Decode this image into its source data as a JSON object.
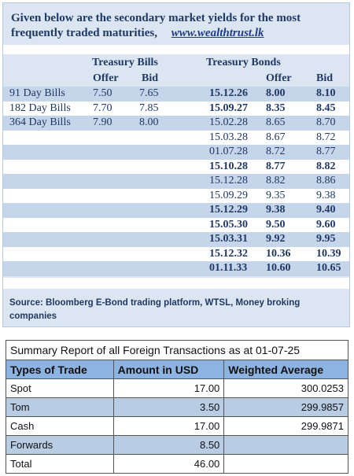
{
  "intro": {
    "text": "Given below are the secondary market yields for the most frequently traded maturities,",
    "link": "www.wealthtrust.lk"
  },
  "headers": {
    "bills": "Treasury Bills",
    "bonds": "Treasury Bonds",
    "offer": "Offer",
    "bid": "Bid"
  },
  "rows": [
    {
      "label": "91 Day Bills",
      "bill_offer": "7.50",
      "bill_bid": "7.65",
      "date": "15.12.26",
      "bond_offer": "8.00",
      "bond_bid": "8.10",
      "bold": true
    },
    {
      "label": "182 Day Bills",
      "bill_offer": "7.70",
      "bill_bid": "7.85",
      "date": "15.09.27",
      "bond_offer": "8.35",
      "bond_bid": "8.45",
      "bold": true
    },
    {
      "label": "364 Day Bills",
      "bill_offer": "7.90",
      "bill_bid": "8.00",
      "date": "15.02.28",
      "bond_offer": "8.65",
      "bond_bid": "8.70",
      "bold": false
    },
    {
      "label": "",
      "bill_offer": "",
      "bill_bid": "",
      "date": "15.03.28",
      "bond_offer": "8.67",
      "bond_bid": "8.72",
      "bold": false
    },
    {
      "label": "",
      "bill_offer": "",
      "bill_bid": "",
      "date": "01.07.28",
      "bond_offer": "8.72",
      "bond_bid": "8.77",
      "bold": false
    },
    {
      "label": "",
      "bill_offer": "",
      "bill_bid": "",
      "date": "15.10.28",
      "bond_offer": "8.77",
      "bond_bid": "8.82",
      "bold": true
    },
    {
      "label": "",
      "bill_offer": "",
      "bill_bid": "",
      "date": "15.12.28",
      "bond_offer": "8.82",
      "bond_bid": "8.86",
      "bold": false
    },
    {
      "label": "",
      "bill_offer": "",
      "bill_bid": "",
      "date": "15.09.29",
      "bond_offer": "9.35",
      "bond_bid": "9.38",
      "bold": false
    },
    {
      "label": "",
      "bill_offer": "",
      "bill_bid": "",
      "date": "15.12.29",
      "bond_offer": "9.38",
      "bond_bid": "9.40",
      "bold": true
    },
    {
      "label": "",
      "bill_offer": "",
      "bill_bid": "",
      "date": "15.05.30",
      "bond_offer": "9.50",
      "bond_bid": "9.60",
      "bold": true
    },
    {
      "label": "",
      "bill_offer": "",
      "bill_bid": "",
      "date": "15.03.31",
      "bond_offer": "9.92",
      "bond_bid": "9.95",
      "bold": true
    },
    {
      "label": "",
      "bill_offer": "",
      "bill_bid": "",
      "date": "15.12.32",
      "bond_offer": "10.36",
      "bond_bid": "10.39",
      "bold": true
    },
    {
      "label": "",
      "bill_offer": "",
      "bill_bid": "",
      "date": "01.11.33",
      "bond_offer": "10.60",
      "bond_bid": "10.65",
      "bold": true
    }
  ],
  "source": "Source: Bloomberg E-Bond trading platform, WTSL, Money broking companies",
  "foreign": {
    "title": "Summary Report of all Foreign Transactions as at 01-07-25",
    "columns": [
      "Types of Trade",
      "Amount in USD",
      "Weighted Average"
    ],
    "rows": [
      {
        "type": "Spot",
        "amount": "17.00",
        "avg": "300.0253"
      },
      {
        "type": "Tom",
        "amount": "3.50",
        "avg": "299.9857"
      },
      {
        "type": "Cash",
        "amount": "17.00",
        "avg": "299.9871"
      },
      {
        "type": "Forwards",
        "amount": "8.50",
        "avg": ""
      },
      {
        "type": "Total",
        "amount": "46.00",
        "avg": ""
      }
    ]
  },
  "colors": {
    "panel_bg": "#dce6f2",
    "row_blue": "#c5d5ea",
    "text_navy": "#1f3864",
    "table_header": "#8db3e2",
    "table_shade": "#b8cce4"
  }
}
